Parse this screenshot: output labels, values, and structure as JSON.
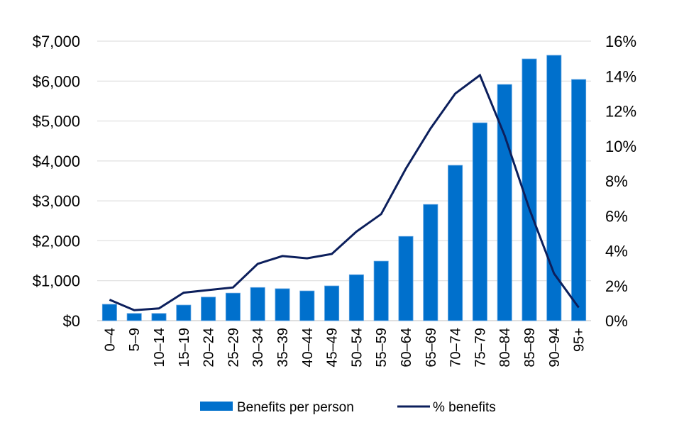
{
  "chart_data": {
    "type": "bar+line",
    "title": "",
    "xlabel": "",
    "ylabel": "",
    "y2label": "",
    "categories": [
      "0–4",
      "5–9",
      "10–14",
      "15–19",
      "20–24",
      "25–29",
      "30–34",
      "35–39",
      "40–44",
      "45–49",
      "50–54",
      "55–59",
      "60–64",
      "65–69",
      "70–74",
      "75–79",
      "80–84",
      "85–89",
      "90–94",
      "95+"
    ],
    "series": [
      {
        "name": "Benefits per person",
        "type": "bar",
        "axis": "left",
        "color": "#0070CC",
        "values": [
          410,
          180,
          180,
          390,
          590,
          690,
          830,
          800,
          745,
          870,
          1150,
          1490,
          2110,
          2910,
          3890,
          4955,
          5915,
          6555,
          6645,
          6040
        ]
      },
      {
        "name": "% benefits",
        "type": "line",
        "axis": "right",
        "color": "#0C1F5C",
        "values": [
          1.2,
          0.6,
          0.7,
          1.6,
          1.75,
          1.9,
          3.25,
          3.7,
          3.57,
          3.82,
          5.1,
          6.1,
          8.7,
          11.0,
          13.0,
          14.05,
          10.6,
          6.4,
          2.7,
          0.75
        ]
      }
    ],
    "ylim": [
      0,
      7000
    ],
    "y2lim": [
      0,
      16
    ],
    "yticks": [
      "$0",
      "$1,000",
      "$2,000",
      "$3,000",
      "$4,000",
      "$5,000",
      "$6,000",
      "$7,000"
    ],
    "y2ticks": [
      "0%",
      "2%",
      "4%",
      "6%",
      "8%",
      "10%",
      "12%",
      "14%",
      "16%"
    ],
    "grid": true,
    "legend_placement": "bottom"
  }
}
